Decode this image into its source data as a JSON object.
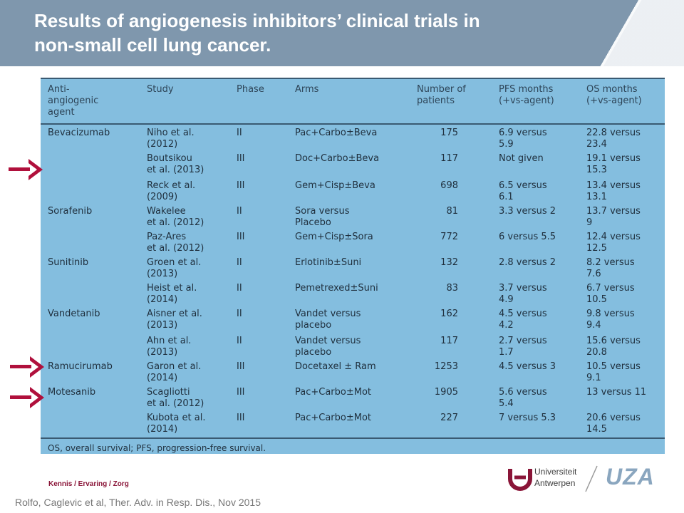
{
  "header": {
    "title_line1": "Results of angiogenesis inhibitors’ clinical trials in",
    "title_line2": "non-small cell lung cancer."
  },
  "table": {
    "columns": [
      "Anti-\nangiogenic\nagent",
      "Study",
      "Phase",
      "Arms",
      "Number of\npatients",
      "PFS months\n(+vs-agent)",
      "OS months\n(+vs-agent)"
    ],
    "rows": [
      {
        "agent": "Bevacizumab",
        "study": "Niho et al.\n(2012)",
        "phase": "II",
        "arms": "Pac+Carbo±Beva",
        "n": "175",
        "pfs": "6.9 versus\n5.9",
        "os": "22.8 versus\n23.4"
      },
      {
        "agent": "",
        "study": "Boutsikou\net al. (2013)",
        "phase": "III",
        "arms": "Doc+Carbo±Beva",
        "n": "117",
        "pfs": "Not given",
        "os": "19.1 versus\n15.3"
      },
      {
        "agent": "",
        "study": "Reck et al.\n(2009)",
        "phase": "III",
        "arms": "Gem+Cisp±Beva",
        "n": "698",
        "pfs": "6.5 versus\n6.1",
        "os": "13.4 versus\n13.1"
      },
      {
        "agent": "Sorafenib",
        "study": "Wakelee\net al. (2012)",
        "phase": "II",
        "arms": "Sora versus\nPlacebo",
        "n": "81",
        "pfs": "3.3 versus 2",
        "os": "13.7 versus\n9"
      },
      {
        "agent": "",
        "study": "Paz-Ares\net al. (2012)",
        "phase": "III",
        "arms": "Gem+Cisp±Sora",
        "n": "772",
        "pfs": "6 versus 5.5",
        "os": "12.4 versus\n12.5"
      },
      {
        "agent": "Sunitinib",
        "study": "Groen et al.\n(2013)",
        "phase": "II",
        "arms": "Erlotinib±Suni",
        "n": "132",
        "pfs": "2.8 versus 2",
        "os": "8.2 versus\n7.6"
      },
      {
        "agent": "",
        "study": "Heist et al.\n(2014)",
        "phase": "II",
        "arms": "Pemetrexed±Suni",
        "n": "83",
        "pfs": "3.7 versus\n4.9",
        "os": "6.7 versus\n10.5"
      },
      {
        "agent": "Vandetanib",
        "study": "Aisner et al.\n(2013)",
        "phase": "II",
        "arms": "Vandet versus\nplacebo",
        "n": "162",
        "pfs": "4.5 versus\n4.2",
        "os": "9.8 versus\n9.4"
      },
      {
        "agent": "",
        "study": "Ahn et al.\n(2013)",
        "phase": "II",
        "arms": "Vandet versus\nplacebo",
        "n": "117",
        "pfs": "2.7 versus\n1.7",
        "os": "15.6 versus\n20.8"
      },
      {
        "agent": "Ramucirumab",
        "study": "Garon et al.\n(2014)",
        "phase": "III",
        "arms": "Docetaxel ± Ram",
        "n": "1253",
        "pfs": "4.5 versus 3",
        "os": "10.5 versus\n9.1"
      },
      {
        "agent": "Motesanib",
        "study": "Scagliotti\net al. (2012)",
        "phase": "III",
        "arms": "Pac+Carbo±Mot",
        "n": "1905",
        "pfs": "5.6 versus\n5.4",
        "os": "13 versus 11"
      },
      {
        "agent": "",
        "study": "Kubota et al.\n(2014)",
        "phase": "III",
        "arms": "Pac+Carbo±Mot",
        "n": "227",
        "pfs": "7 versus 5.3",
        "os": "20.6 versus\n14.5"
      }
    ],
    "footnote": "OS, overall survival; PFS, progression-free survival."
  },
  "footer": {
    "tagline": "Kennis / Ervaring / Zorg",
    "citation": "Rolfo, Caglevic et al, Ther.  Adv. in Resp. Dis., Nov 2015",
    "uantwerp_line1": "Universiteit",
    "uantwerp_line2": "Antwerpen",
    "uza": "UZA"
  },
  "colors": {
    "header_bg": "#7f97ad",
    "table_bg": "#84bedf",
    "arrow": "#b0103c",
    "tagline": "#8a1538"
  }
}
